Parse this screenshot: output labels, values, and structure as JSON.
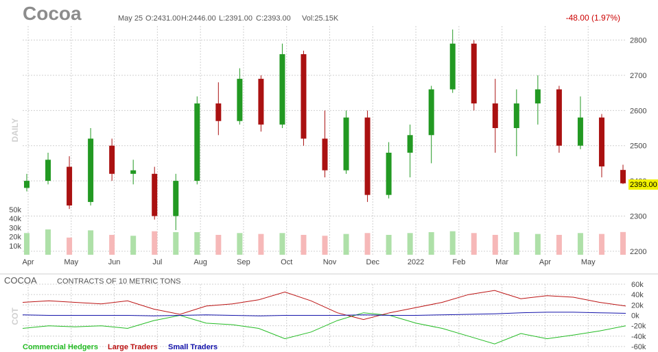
{
  "header": {
    "symbol": "Cocoa",
    "date": "May 25",
    "open": "O:2431.00",
    "high": "H:2446.00",
    "low": "L:2391.00",
    "close": "C:2393.00",
    "volume": "Vol:25.15K",
    "change": "-48.00 (1.97%)"
  },
  "labels": {
    "period": "DAILY",
    "cot_symbol": "COCOA",
    "cot_note": "CONTRACTS OF 10 METRIC TONS",
    "cot_axis": "COT",
    "last_price": "2393.00"
  },
  "colors": {
    "up": "#229922",
    "down": "#aa1111",
    "vol_up": "#aee0a8",
    "vol_down": "#f6b8b8",
    "grid": "#cfcfcf",
    "highlight": "#f2f200",
    "commercial": "#22bb22",
    "large": "#bb1111",
    "small": "#1111aa"
  },
  "chart_data": [
    {
      "type": "candlestick",
      "title": "Cocoa",
      "xlabel": "",
      "ylabel": "",
      "x_tick_labels": [
        "Apr",
        "May",
        "Jun",
        "Jul",
        "Aug",
        "Sep",
        "Oct",
        "Nov",
        "Dec",
        "2022",
        "Feb",
        "Mar",
        "Apr",
        "May"
      ],
      "y_ticks": [
        2200,
        2300,
        2400,
        2500,
        2600,
        2700,
        2800
      ],
      "y_tick_labels": [
        "2200",
        "2300",
        "2400",
        "2500",
        "2600",
        "2700",
        "2800"
      ],
      "ylim": [
        2190,
        2840
      ],
      "grid": true,
      "series": [
        {
          "values": [
            {
              "x": "Apr",
              "o": 2380,
              "h": 2420,
              "l": 2370,
              "c": 2400
            },
            {
              "x": "Apr",
              "o": 2400,
              "h": 2480,
              "l": 2390,
              "c": 2460
            },
            {
              "x": "May",
              "o": 2440,
              "h": 2470,
              "l": 2320,
              "c": 2330
            },
            {
              "x": "May",
              "o": 2340,
              "h": 2550,
              "l": 2330,
              "c": 2520
            },
            {
              "x": "Jun",
              "o": 2500,
              "h": 2520,
              "l": 2400,
              "c": 2420
            },
            {
              "x": "Jun",
              "o": 2420,
              "h": 2460,
              "l": 2390,
              "c": 2430
            },
            {
              "x": "Jul",
              "o": 2420,
              "h": 2440,
              "l": 2290,
              "c": 2300
            },
            {
              "x": "Jul",
              "o": 2300,
              "h": 2420,
              "l": 2260,
              "c": 2400
            },
            {
              "x": "Aug",
              "o": 2400,
              "h": 2640,
              "l": 2390,
              "c": 2620
            },
            {
              "x": "Aug",
              "o": 2620,
              "h": 2680,
              "l": 2530,
              "c": 2570
            },
            {
              "x": "Sep",
              "o": 2570,
              "h": 2720,
              "l": 2560,
              "c": 2690
            },
            {
              "x": "Sep",
              "o": 2690,
              "h": 2700,
              "l": 2540,
              "c": 2560
            },
            {
              "x": "Oct",
              "o": 2560,
              "h": 2790,
              "l": 2550,
              "c": 2760
            },
            {
              "x": "Oct",
              "o": 2760,
              "h": 2770,
              "l": 2500,
              "c": 2520
            },
            {
              "x": "Nov",
              "o": 2520,
              "h": 2600,
              "l": 2410,
              "c": 2430
            },
            {
              "x": "Nov",
              "o": 2430,
              "h": 2600,
              "l": 2420,
              "c": 2580
            },
            {
              "x": "Dec",
              "o": 2580,
              "h": 2600,
              "l": 2340,
              "c": 2360
            },
            {
              "x": "Dec",
              "o": 2360,
              "h": 2510,
              "l": 2350,
              "c": 2480
            },
            {
              "x": "2022",
              "o": 2480,
              "h": 2560,
              "l": 2410,
              "c": 2530
            },
            {
              "x": "2022",
              "o": 2530,
              "h": 2670,
              "l": 2450,
              "c": 2660
            },
            {
              "x": "Feb",
              "o": 2660,
              "h": 2830,
              "l": 2650,
              "c": 2790
            },
            {
              "x": "Feb",
              "o": 2790,
              "h": 2800,
              "l": 2600,
              "c": 2620
            },
            {
              "x": "Mar",
              "o": 2620,
              "h": 2690,
              "l": 2480,
              "c": 2550
            },
            {
              "x": "Mar",
              "o": 2550,
              "h": 2660,
              "l": 2470,
              "c": 2620
            },
            {
              "x": "Apr",
              "o": 2620,
              "h": 2700,
              "l": 2560,
              "c": 2660
            },
            {
              "x": "Apr",
              "o": 2660,
              "h": 2670,
              "l": 2480,
              "c": 2500
            },
            {
              "x": "May",
              "o": 2500,
              "h": 2640,
              "l": 2490,
              "c": 2580
            },
            {
              "x": "May",
              "o": 2580,
              "h": 2590,
              "l": 2410,
              "c": 2441
            },
            {
              "x": "May 25",
              "o": 2431,
              "h": 2446,
              "l": 2391,
              "c": 2393
            }
          ]
        }
      ]
    },
    {
      "type": "bar",
      "title": "Volume",
      "y_ticks": [
        10000,
        20000,
        30000,
        40000,
        50000
      ],
      "y_tick_labels": [
        "10k",
        "20k",
        "30k",
        "40k",
        "50k"
      ],
      "ylim": [
        0,
        50000
      ],
      "values": [
        24000,
        28000,
        19000,
        27000,
        22000,
        21000,
        26000,
        25000,
        25000,
        22000,
        24000,
        23000,
        24000,
        22000,
        21000,
        23000,
        24000,
        22000,
        24000,
        25000,
        26000,
        24000,
        22000,
        25000,
        23000,
        22000,
        24000,
        23000,
        25150
      ]
    },
    {
      "type": "line",
      "title": "COT",
      "y_ticks": [
        -60000,
        -40000,
        -20000,
        0,
        20000,
        40000,
        60000
      ],
      "y_tick_labels": [
        "-60k",
        "-40k",
        "-20k",
        "0k",
        "20k",
        "40k",
        "60k"
      ],
      "ylim": [
        -60000,
        60000
      ],
      "legend": "bottom-left",
      "series": [
        {
          "name": "Commercial Hedgers",
          "values": [
            -25000,
            -20000,
            -22000,
            -20000,
            -25000,
            -10000,
            0,
            -15000,
            -18000,
            -25000,
            -45000,
            -32000,
            -10000,
            5000,
            0,
            -15000,
            -25000,
            -40000,
            -55000,
            -35000,
            -45000,
            -38000,
            -30000,
            -20000
          ]
        },
        {
          "name": "Large Traders",
          "values": [
            25000,
            28000,
            25000,
            22000,
            28000,
            12000,
            2000,
            18000,
            22000,
            30000,
            45000,
            28000,
            5000,
            -8000,
            5000,
            15000,
            25000,
            40000,
            48000,
            32000,
            38000,
            35000,
            25000,
            18000
          ]
        },
        {
          "name": "Small Traders",
          "values": [
            1000,
            0,
            0,
            0,
            0,
            -1000,
            0,
            1000,
            0,
            -1000,
            0,
            0,
            0,
            1000,
            0,
            0,
            1000,
            2000,
            3000,
            5000,
            6000,
            6000,
            5000,
            4000
          ]
        }
      ]
    }
  ]
}
